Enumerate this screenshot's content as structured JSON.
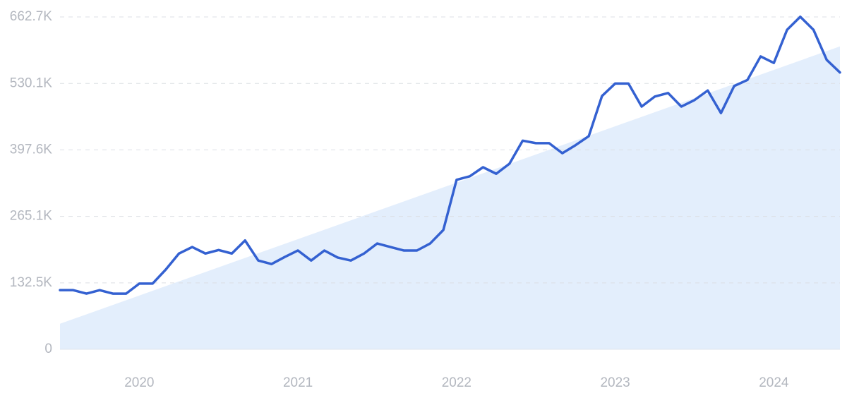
{
  "chart_data": {
    "type": "line",
    "categories": [
      null,
      null,
      null,
      null,
      null,
      null,
      "2020",
      null,
      null,
      null,
      null,
      null,
      null,
      null,
      null,
      null,
      null,
      null,
      "2021",
      null,
      null,
      null,
      null,
      null,
      null,
      null,
      null,
      null,
      null,
      null,
      "2022",
      null,
      null,
      null,
      null,
      null,
      null,
      null,
      null,
      null,
      null,
      null,
      "2023",
      null,
      null,
      null,
      null,
      null,
      null,
      null,
      null,
      null,
      null,
      null,
      "2024",
      null,
      null,
      null,
      null,
      null
    ],
    "series": [
      {
        "color": "#3461d1",
        "values": [
          118000,
          118000,
          111000,
          118000,
          111000,
          111000,
          131000,
          131000,
          159000,
          191000,
          204000,
          191000,
          198000,
          191000,
          217000,
          177000,
          170000,
          184000,
          197000,
          177000,
          197000,
          183000,
          177000,
          191000,
          211000,
          204000,
          197000,
          197000,
          211000,
          238000,
          338000,
          345000,
          363000,
          350000,
          370000,
          416000,
          411000,
          411000,
          391000,
          407000,
          425000,
          505000,
          530000,
          530000,
          484000,
          504000,
          511000,
          484000,
          497000,
          516000,
          471000,
          525000,
          537000,
          584000,
          571000,
          637000,
          663000,
          637000,
          577000,
          552000
        ]
      }
    ],
    "trend": {
      "color": "#e3eefc",
      "values": [
        51000,
        604000
      ]
    },
    "ylim": [
      0,
      662700
    ],
    "yticks": [
      0,
      {
        "value": 132500,
        "label": "132.5K"
      },
      {
        "value": 265100,
        "label": "265.1K"
      },
      {
        "value": 397600,
        "label": "397.6K"
      },
      {
        "value": 530100,
        "label": "530.1K"
      },
      {
        "value": 662700,
        "label": "662.7K"
      }
    ],
    "grid": true
  }
}
